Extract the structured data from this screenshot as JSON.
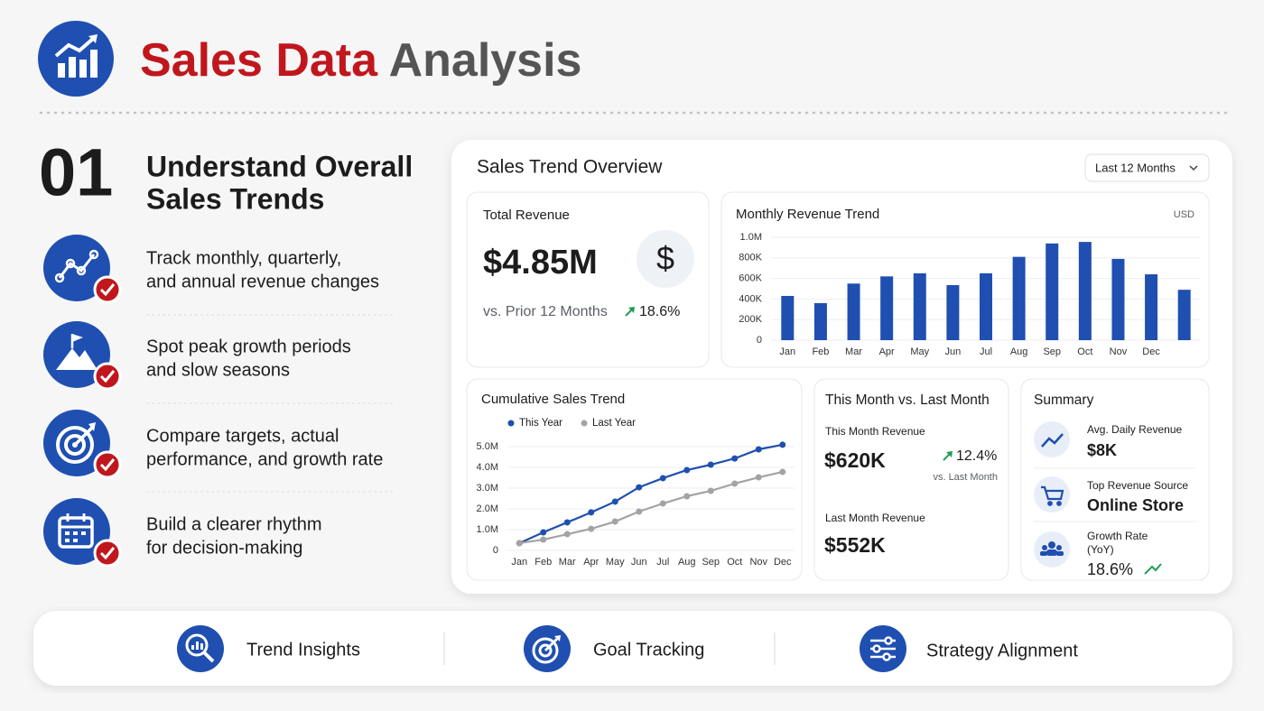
{
  "header": {
    "title_accent": "Sales Data",
    "title_rest": "Analysis"
  },
  "section": {
    "number": "01",
    "heading": [
      "Understand Overall",
      "Sales Trends"
    ]
  },
  "features": [
    {
      "lines": [
        "Track monthly, quarterly,",
        "and annual revenue changes"
      ]
    },
    {
      "lines": [
        "Spot peak growth periods",
        "and slow seasons"
      ]
    },
    {
      "lines": [
        "Compare targets, actual",
        "performance, and growth rate"
      ]
    },
    {
      "lines": [
        "Build a clearer rhythm",
        "for decision-making"
      ]
    }
  ],
  "dashboard": {
    "title": "Sales Trend Overview",
    "period": "Last 12 Months",
    "total_revenue": {
      "label": "Total Revenue",
      "value": "$4.85M",
      "comparison": "vs. Prior 12 Months",
      "change": "18.6%"
    },
    "month_comparison": {
      "title": "This Month vs. Last Month",
      "this_label": "This Month Revenue",
      "this_value": "$620K",
      "change": "12.4%",
      "change_note": "vs. Last Month",
      "last_label": "Last Month Revenue",
      "last_value": "$552K"
    },
    "summary": {
      "title": "Summary",
      "items": [
        {
          "label": [
            "Avg. Daily Revenue"
          ],
          "value": "$8K"
        },
        {
          "label": [
            "Top Revenue Source"
          ],
          "value": "Online Store"
        },
        {
          "label": [
            "Growth Rate",
            "(YoY)"
          ],
          "value": "18.6%"
        }
      ]
    }
  },
  "chart_data": [
    {
      "type": "bar",
      "title": "Monthly Revenue Trend",
      "unit": "USD",
      "categories": [
        "Jan",
        "Feb",
        "Mar",
        "Apr",
        "May",
        "Jun",
        "Jul",
        "Aug",
        "Sep",
        "Oct",
        "Nov",
        "Dec",
        null
      ],
      "values": [
        430000,
        360000,
        550000,
        620000,
        650000,
        535000,
        650000,
        810000,
        940000,
        955000,
        790000,
        640000,
        490000
      ],
      "color": "#1f4fb0",
      "ylim": [
        0,
        1000000
      ],
      "yticks": [
        0,
        {
          "value": 200000,
          "label": "200K"
        },
        {
          "value": 400000,
          "label": "400K"
        },
        {
          "value": 600000,
          "label": "600K"
        },
        {
          "value": 800000,
          "label": "800K"
        },
        {
          "value": 1000000,
          "label": "1.0M"
        }
      ],
      "grid": true
    },
    {
      "type": "line",
      "title": "Cumulative Sales Trend",
      "categories": [
        "Jan",
        "Feb",
        "Mar",
        "Apr",
        "May",
        "Jun",
        "Jul",
        "Aug",
        "Sep",
        "Oct",
        "Nov",
        "Dec"
      ],
      "series": [
        {
          "name": "This Year",
          "color": "#1f4fb0",
          "values": [
            350000,
            870000,
            1350000,
            1830000,
            2350000,
            3040000,
            3480000,
            3870000,
            4130000,
            4430000,
            4870000,
            5090000
          ]
        },
        {
          "name": "Last Year",
          "color": "#a3a3a3",
          "values": [
            350000,
            520000,
            780000,
            1040000,
            1390000,
            1870000,
            2260000,
            2610000,
            2870000,
            3220000,
            3520000,
            3780000
          ]
        }
      ],
      "ylim": [
        0,
        5200000
      ],
      "yticks": [
        0,
        {
          "value": 1000000,
          "label": "1.0M"
        },
        {
          "value": 2000000,
          "label": "2.0M"
        },
        {
          "value": 3000000,
          "label": "3.0M"
        },
        {
          "value": 4000000,
          "label": "4.0M"
        },
        {
          "value": 5000000,
          "label": "5.0M"
        }
      ],
      "grid": true,
      "legend": "top"
    }
  ],
  "footer": {
    "items": [
      "Trend Insights",
      "Goal Tracking",
      "Strategy Alignment"
    ]
  }
}
